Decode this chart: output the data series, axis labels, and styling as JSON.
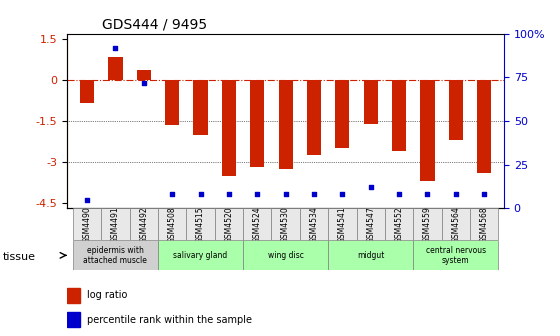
{
  "title": "GDS444 / 9495",
  "samples": [
    "GSM4490",
    "GSM4491",
    "GSM4492",
    "GSM4508",
    "GSM4515",
    "GSM4520",
    "GSM4524",
    "GSM4530",
    "GSM4534",
    "GSM4541",
    "GSM4547",
    "GSM4552",
    "GSM4559",
    "GSM4564",
    "GSM4568"
  ],
  "log_ratio": [
    -0.85,
    0.85,
    0.35,
    -1.65,
    -2.0,
    -3.5,
    -3.2,
    -3.25,
    -2.75,
    -2.5,
    -1.6,
    -2.6,
    -3.7,
    -2.2,
    -3.4
  ],
  "percentile": [
    5,
    92,
    72,
    8,
    8,
    8,
    8,
    8,
    8,
    8,
    12,
    8,
    8,
    8,
    8
  ],
  "ylim": [
    -4.7,
    1.7
  ],
  "yticks": [
    1.5,
    0,
    -1.5,
    -3,
    -4.5
  ],
  "bar_color": "#cc2200",
  "dot_color": "#0000cc",
  "ref_line_y": 0,
  "grid_lines": [
    -1.5,
    -3.0
  ],
  "tissue_groups": [
    {
      "label": "epidermis with\nattached muscle",
      "start": 0,
      "end": 3,
      "color": "#d0d0d0"
    },
    {
      "label": "salivary gland",
      "start": 3,
      "end": 6,
      "color": "#aaffaa"
    },
    {
      "label": "wing disc",
      "start": 6,
      "end": 9,
      "color": "#aaffaa"
    },
    {
      "label": "midgut",
      "start": 9,
      "end": 12,
      "color": "#aaffaa"
    },
    {
      "label": "central nervous\nsystem",
      "start": 12,
      "end": 15,
      "color": "#aaffaa"
    }
  ],
  "tissue_label": "tissue",
  "right_yticks": [
    0,
    25,
    50,
    75,
    100
  ],
  "right_yticklabels": [
    "0",
    "25",
    "50",
    "75",
    "100%"
  ],
  "percentile_scale": [
    0,
    100
  ],
  "log_ratio_scale": [
    -4.7,
    1.7
  ]
}
